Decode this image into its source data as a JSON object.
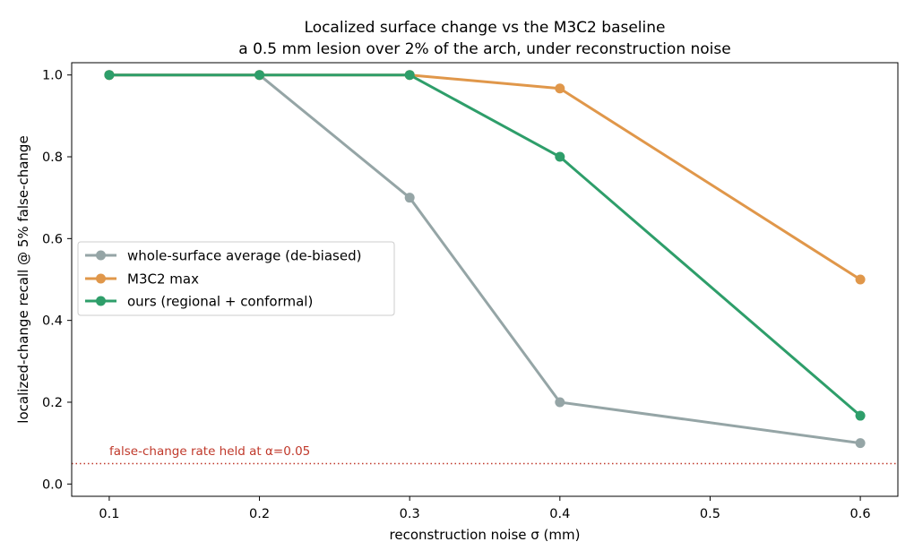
{
  "chart_data": {
    "type": "line",
    "title": "Localized surface change vs the M3C2 baseline",
    "subtitle": "a 0.5 mm lesion over 2% of the arch, under reconstruction noise",
    "xlabel": "reconstruction noise σ (mm)",
    "ylabel": "localized-change recall @ 5% false-change",
    "x": [
      0.1,
      0.2,
      0.3,
      0.4,
      0.6
    ],
    "xlim": [
      0.075,
      0.625
    ],
    "ylim": [
      -0.03,
      1.03
    ],
    "xticks": [
      0.1,
      0.2,
      0.3,
      0.4,
      0.5,
      0.6
    ],
    "xtick_labels": [
      "0.1",
      "0.2",
      "0.3",
      "0.4",
      "0.5",
      "0.6"
    ],
    "yticks": [
      0.0,
      0.2,
      0.4,
      0.6,
      0.8,
      1.0
    ],
    "ytick_labels": [
      "0.0",
      "0.2",
      "0.4",
      "0.6",
      "0.8",
      "1.0"
    ],
    "grid": false,
    "legend_position": "center-left",
    "series": [
      {
        "name": "whole-surface average (de-biased)",
        "color": "#95a5a6",
        "values": [
          1.0,
          1.0,
          0.7,
          0.2,
          0.1
        ]
      },
      {
        "name": "M3C2 max",
        "color": "#e0974a",
        "values": [
          1.0,
          1.0,
          1.0,
          0.967,
          0.5
        ]
      },
      {
        "name": "ours (regional + conformal)",
        "color": "#2e9e6a",
        "values": [
          1.0,
          1.0,
          1.0,
          0.8,
          0.167
        ]
      }
    ],
    "reference_line": {
      "y": 0.05,
      "color": "#c0392b",
      "style": "dotted",
      "label": "false-change rate held at α=0.05"
    }
  }
}
